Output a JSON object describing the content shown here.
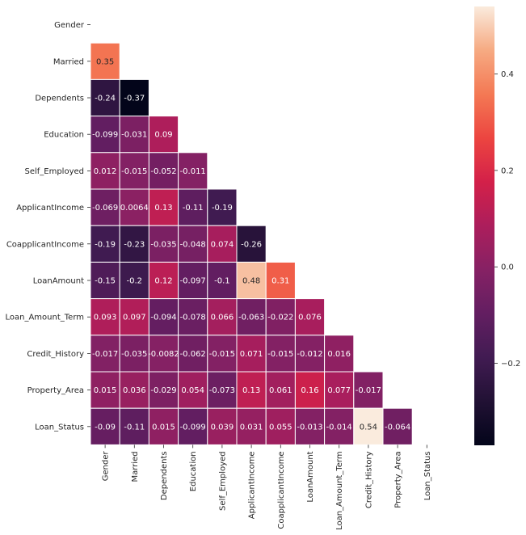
{
  "chart_data": {
    "type": "heatmap",
    "title": "",
    "xlabel": "",
    "ylabel": "",
    "variables": [
      "Gender",
      "Married",
      "Dependents",
      "Education",
      "Self_Employed",
      "ApplicantIncome",
      "CoapplicantIncome",
      "LoanAmount",
      "Loan_Amount_Term",
      "Credit_History",
      "Property_Area",
      "Loan_Status"
    ],
    "mask": "upper-triangle-including-diagonal",
    "matrix_lower": [
      [],
      [
        0.35
      ],
      [
        -0.24,
        -0.37
      ],
      [
        -0.099,
        -0.031,
        0.09
      ],
      [
        0.012,
        -0.015,
        -0.052,
        -0.011
      ],
      [
        -0.069,
        0.0064,
        0.13,
        -0.11,
        -0.19
      ],
      [
        -0.19,
        -0.23,
        -0.035,
        -0.048,
        0.074,
        -0.26
      ],
      [
        -0.15,
        -0.2,
        0.12,
        -0.097,
        -0.1,
        0.48,
        0.31
      ],
      [
        0.093,
        0.097,
        -0.094,
        -0.078,
        0.066,
        -0.063,
        -0.022,
        0.076
      ],
      [
        -0.017,
        -0.035,
        -0.0082,
        -0.062,
        -0.015,
        0.071,
        -0.015,
        -0.012,
        0.016
      ],
      [
        0.015,
        0.036,
        -0.029,
        0.054,
        -0.073,
        0.13,
        0.061,
        0.16,
        0.077,
        -0.017
      ],
      [
        -0.09,
        -0.11,
        0.015,
        -0.099,
        0.039,
        0.031,
        0.055,
        -0.013,
        -0.014,
        0.54,
        -0.064
      ]
    ],
    "cell_labels": [
      [],
      [
        "0.35"
      ],
      [
        "-0.24",
        "-0.37"
      ],
      [
        "-0.099",
        "-0.031",
        "0.09"
      ],
      [
        "0.012",
        "-0.015",
        "-0.052",
        "-0.011"
      ],
      [
        "-0.069",
        "0.0064",
        "0.13",
        "-0.11",
        "-0.19"
      ],
      [
        "-0.19",
        "-0.23",
        "-0.035",
        "-0.048",
        "0.074",
        "-0.26"
      ],
      [
        "-0.15",
        "-0.2",
        "0.12",
        "-0.097",
        "-0.1",
        "0.48",
        "0.31"
      ],
      [
        "0.093",
        "0.097",
        "-0.094",
        "-0.078",
        "0.066",
        "-0.063",
        "-0.022",
        "0.076"
      ],
      [
        "-0.017",
        "-0.035",
        "-0.0082",
        "-0.062",
        "-0.015",
        "0.071",
        "-0.015",
        "-0.012",
        "0.016"
      ],
      [
        "0.015",
        "0.036",
        "-0.029",
        "0.054",
        "-0.073",
        "0.13",
        "0.061",
        "0.16",
        "0.077",
        "-0.017"
      ],
      [
        "-0.09",
        "-0.11",
        "0.015",
        "-0.099",
        "0.039",
        "0.031",
        "0.055",
        "-0.013",
        "-0.014",
        "0.54",
        "-0.064"
      ]
    ],
    "colorbar": {
      "colormap": "rocket",
      "vmin": -0.37,
      "vmax": 0.54,
      "ticks": [
        0.4,
        0.2,
        0.0,
        -0.2
      ],
      "tick_labels": [
        "0.4",
        "0.2",
        "0.0",
        "−0.2"
      ]
    },
    "grid": true,
    "legend": "colorbar-right"
  }
}
